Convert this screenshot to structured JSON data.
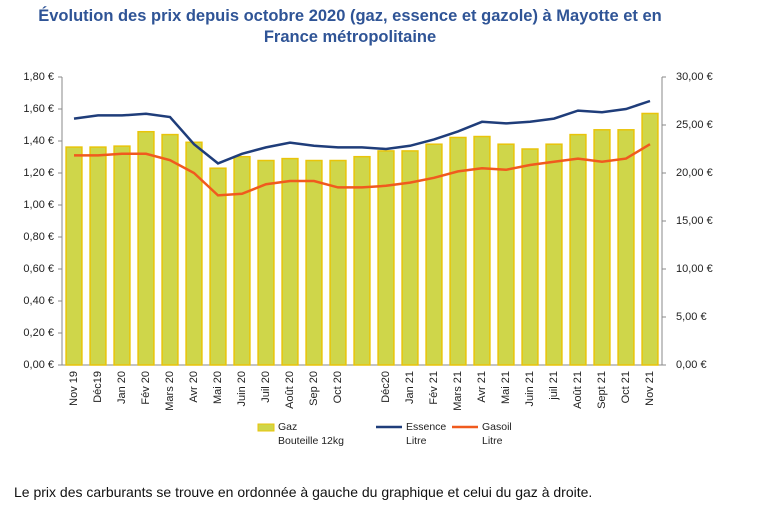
{
  "chart_data": {
    "type": "bar-line",
    "title": "Évolution des prix depuis octobre 2020 (gaz, essence et gazole) à Mayotte et en France métropolitaine",
    "note": "Le prix des carburants se trouve en ordonnée à gauche du graphique et celui du gaz à droite.",
    "categories": [
      "Nov 19",
      "Déc19",
      "Jan 20",
      "Fév 20",
      "Mars 20",
      "Avr 20",
      "Mai 20",
      "Juin 20",
      "Juil 20",
      "Août 20",
      "Sep 20",
      "Oct 20",
      null,
      "Déc20",
      "Jan 21",
      "Fév 21",
      "Mars 21",
      "Avr 21",
      "Mai 21",
      "Juin 21",
      "juil 21",
      "Août 21",
      "Sept 21",
      "Oct 21",
      "Nov 21"
    ],
    "series": [
      {
        "name": "Gaz\nBouteille 12kg",
        "type": "bar",
        "axis": "y2",
        "color": "#cfd64a",
        "values": [
          22.7,
          22.7,
          22.8,
          24.3,
          24.0,
          23.2,
          20.5,
          21.7,
          21.3,
          21.5,
          21.3,
          21.3,
          21.7,
          22.3,
          22.3,
          23.0,
          23.7,
          23.8,
          23.0,
          22.5,
          23.0,
          24.0,
          24.5,
          24.5,
          26.2
        ]
      },
      {
        "name": "Essence\nLitre",
        "type": "line",
        "color": "#1f3d7a",
        "values": [
          1.54,
          1.56,
          1.56,
          1.57,
          1.55,
          1.38,
          1.26,
          1.32,
          1.36,
          1.39,
          1.37,
          1.36,
          1.36,
          1.35,
          1.37,
          1.41,
          1.46,
          1.52,
          1.51,
          1.52,
          1.54,
          1.59,
          1.58,
          1.6,
          1.65
        ]
      },
      {
        "name": "Gasoil\nLitre",
        "type": "line",
        "color": "#f05a1e",
        "values": [
          1.31,
          1.31,
          1.32,
          1.32,
          1.28,
          1.2,
          1.06,
          1.07,
          1.13,
          1.15,
          1.15,
          1.11,
          1.11,
          1.12,
          1.14,
          1.17,
          1.21,
          1.23,
          1.22,
          1.25,
          1.27,
          1.29,
          1.27,
          1.29,
          1.38
        ]
      }
    ],
    "ylim": [
      0,
      1.8
    ],
    "yticks": [
      {
        "value": 0,
        "label": "0,00 €"
      },
      {
        "value": 0.2,
        "label": "0,20 €"
      },
      {
        "value": 0.4,
        "label": "0,40 €"
      },
      {
        "value": 0.6,
        "label": "0,60 €"
      },
      {
        "value": 0.8,
        "label": "0,80 €"
      },
      {
        "value": 1.0,
        "label": "1,00 €"
      },
      {
        "value": 1.2,
        "label": "1,20 €"
      },
      {
        "value": 1.4,
        "label": "1,40 €"
      },
      {
        "value": 1.6,
        "label": "1,60 €"
      },
      {
        "value": 1.8,
        "label": "1,80 €"
      }
    ],
    "y2lim": [
      0,
      30
    ],
    "y2ticks": [
      {
        "value": 0,
        "label": "0,00 €"
      },
      {
        "value": 5,
        "label": "5,00 €"
      },
      {
        "value": 10,
        "label": "10,00 €"
      },
      {
        "value": 15,
        "label": "15,00 €"
      },
      {
        "value": 20,
        "label": "20,00 €"
      },
      {
        "value": 25,
        "label": "25,00 €"
      },
      {
        "value": 30,
        "label": "30,00 €"
      }
    ],
    "legend": "bottom"
  }
}
